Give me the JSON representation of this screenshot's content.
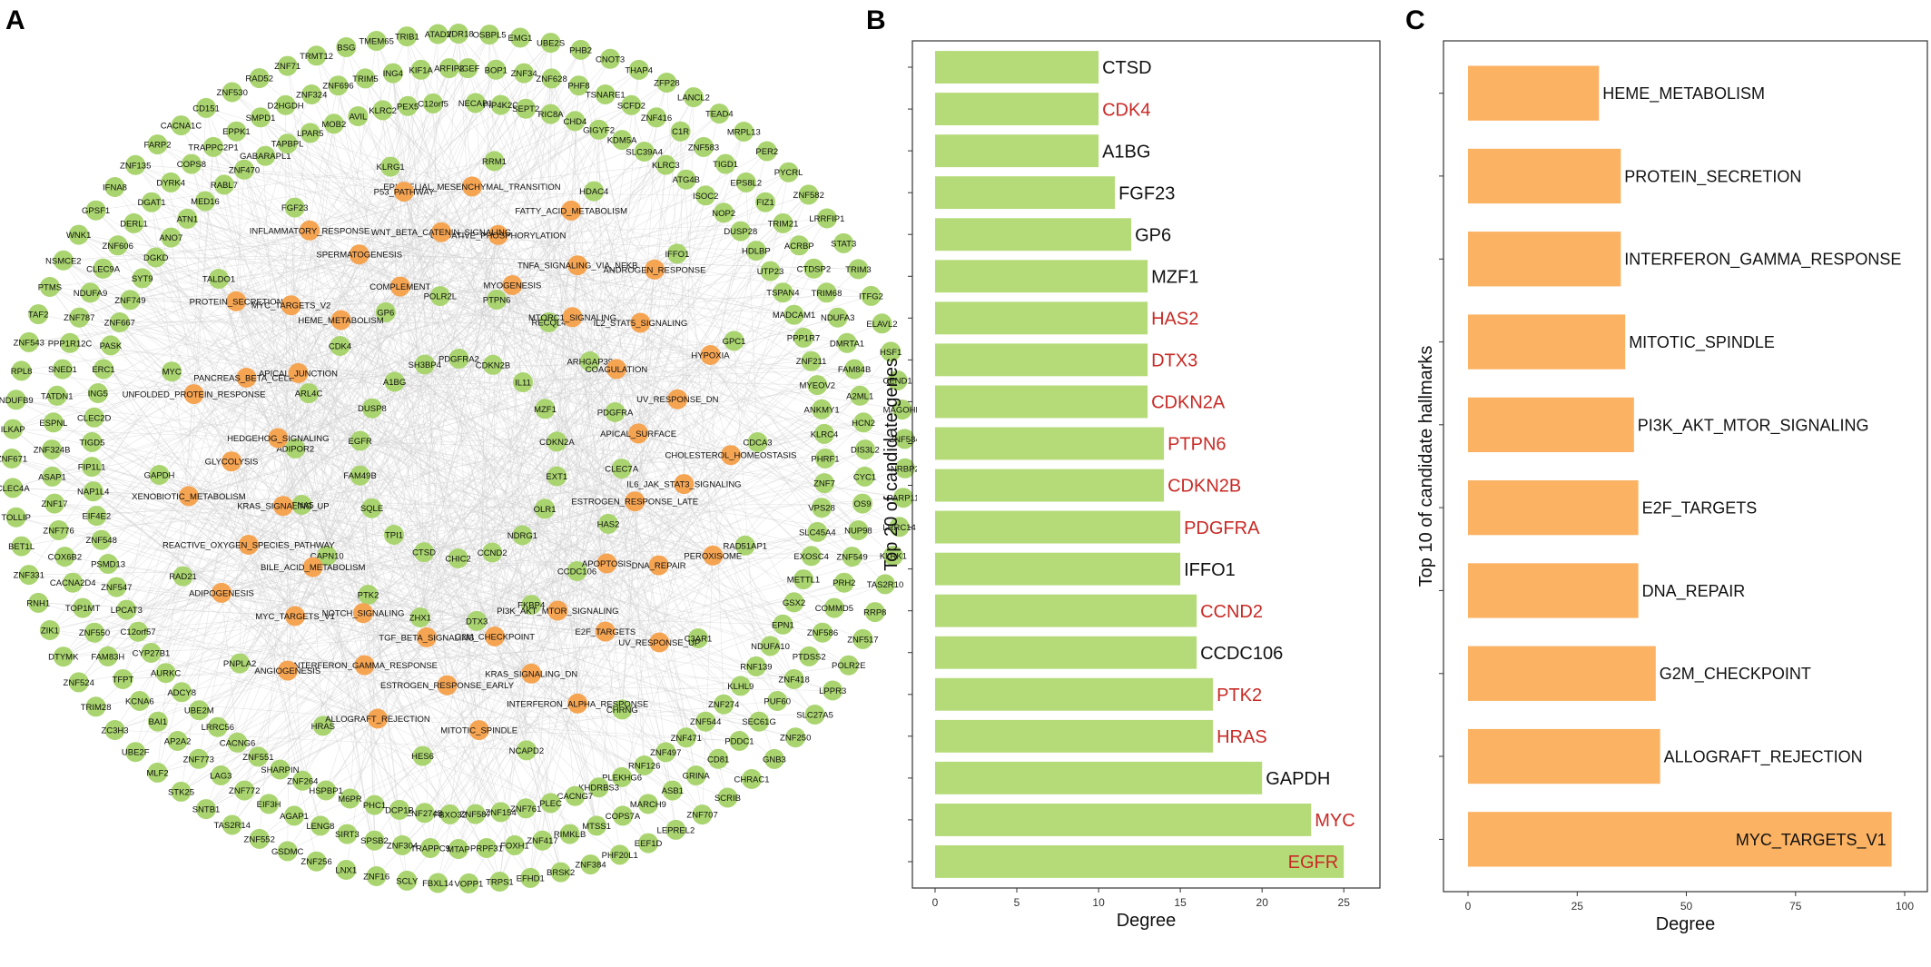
{
  "colors": {
    "gene_node": "#a9d46f",
    "hallmark_node": "#f5a452",
    "bar_b": "#b5db78",
    "bar_c": "#fbb262",
    "highlight_text": "#c82a25",
    "normal_text": "#111111",
    "edge": "#cfcfcf"
  },
  "panels": {
    "a": "A",
    "b": "B",
    "c": "C"
  },
  "network": {
    "hallmark_nodes": [
      "EPITHELIAL_MESENCHYMAL_TRANSITION",
      "OXIDATIVE_PHOSPHORYLATION",
      "MYOGENESIS",
      "FATTY_ACID_METABOLISM",
      "TNFA_SIGNALING_VIA_NFKB",
      "MTORC1_SIGNALING",
      "ANDROGEN_RESPONSE",
      "IL2_STAT5_SIGNALING",
      "COAGULATION",
      "HYPOXIA",
      "UV_RESPONSE_DN",
      "APICAL_SURFACE",
      "CHOLESTEROL_HOMEOSTASIS",
      "IL6_JAK_STAT3_SIGNALING",
      "ESTROGEN_RESPONSE_LATE",
      "PEROXISOME",
      "DNA_REPAIR",
      "APOPTOSIS",
      "UV_RESPONSE_UP",
      "E2F_TARGETS",
      "PI3K_AKT_MTOR_SIGNALING",
      "INTERFERON_ALPHA_RESPONSE",
      "KRAS_SIGNALING_DN",
      "G2M_CHECKPOINT",
      "MITOTIC_SPINDLE",
      "ESTROGEN_RESPONSE_EARLY",
      "TGF_BETA_SIGNALING",
      "ALLOGRAFT_REJECTION",
      "INTERFERON_GAMMA_RESPONSE",
      "NOTCH_SIGNALING",
      "ANGIOGENESIS",
      "MYC_TARGETS_V1",
      "BILE_ACID_METABOLISM",
      "ADIPOGENESIS",
      "REACTIVE_OXYGEN_SPECIES_PATHWAY",
      "KRAS_SIGNALING_UP",
      "XENOBIOTIC_METABOLISM",
      "GLYCOLYSIS",
      "HEDGEHOG_SIGNALING",
      "UNFOLDED_PROTEIN_RESPONSE",
      "PANCREAS_BETA_CELLS",
      "APICAL_JUNCTION",
      "PROTEIN_SECRETION",
      "MYC_TARGETS_V2",
      "HEME_METABOLISM",
      "INFLAMMATORY_RESPONSE",
      "SPERMATOGENESIS",
      "COMPLEMENT",
      "P53_PATHWAY",
      "WNT_BETA_CATENIN_SIGNALING"
    ],
    "inner_genes": [
      "RRM1",
      "PTPN6",
      "CDKN2B",
      "HDAC4",
      "RECQL4",
      "IL11",
      "IFFO1",
      "ARHGAP39",
      "MZF1",
      "GPC1",
      "PDGFRA",
      "CDKN2A",
      "CDCA3",
      "CLEC7A",
      "EXT1",
      "RAD51AP1",
      "HAS2",
      "OLR1",
      "C3AR1",
      "CCDC106",
      "NDRG1",
      "CHRNG",
      "FKBP4",
      "CCND2",
      "NCAPD2",
      "DTX3",
      "CHIC2",
      "HES6",
      "ZHX1",
      "CTSD",
      "HRAS",
      "PTK2",
      "TPI1",
      "PNPLA2",
      "CAPN10",
      "SQLE",
      "RAD21",
      "IFNA5",
      "FAM49B",
      "GAPDH",
      "ADIPOR2",
      "EGFR",
      "MYC",
      "ARL4C",
      "DUSP8",
      "TALDO1",
      "CDK4",
      "A1BG",
      "FGF23",
      "GP6",
      "SH3BP4",
      "KLRG1",
      "POLR2L",
      "PDGFRA2"
    ],
    "outer_genes": [
      "WDR18",
      "NGEF",
      "NECAP1",
      "OSBPL5",
      "BOP1",
      "PIP4K2C",
      "EMG1",
      "ZNF34",
      "SEPT2",
      "UBE2S",
      "ZNF628",
      "RIC8A",
      "PHB2",
      "PHF8",
      "CHD4",
      "CNOT3",
      "TSNARE1",
      "GIGYF2",
      "THAP4",
      "SCFD2",
      "KDM5A",
      "ZFP28",
      "ZNF416",
      "SLC39A4",
      "LANCL2",
      "C1R",
      "KLRC3",
      "TEAD4",
      "ZNF583",
      "ATG4B",
      "MRPL13",
      "TIGD1",
      "ISOC2",
      "PER2",
      "EPS8L2",
      "NOP2",
      "PYCRL",
      "FIZ1",
      "DUSP28",
      "ZNF582",
      "TRIM21",
      "HDLBP",
      "LRRFIP1",
      "ACRBP",
      "UTP23",
      "STAT3",
      "CTDSP2",
      "TSPAN4",
      "TRIM3",
      "TRIM68",
      "MADCAM1",
      "ITFG2",
      "NDUFA3",
      "PPP1R7",
      "ELAVL2",
      "DMRTA1",
      "ZNF211",
      "HSF1",
      "FAM84B",
      "MYEOV2",
      "CEND1",
      "A2ML1",
      "ANKMY1",
      "MAGOHB",
      "HCN2",
      "KLRC4",
      "ZNF584",
      "DIS3L2",
      "PHRF1",
      "NRBP2",
      "CYC1",
      "ZNF7",
      "PARP11",
      "OS9",
      "VPS28",
      "LRRC14",
      "NUP98",
      "SLC45A4",
      "KLRK1",
      "ZNF549",
      "EXOSC4",
      "TAS2R10",
      "PRH2",
      "METTL1",
      "RRP8",
      "COMMD5",
      "GSX2",
      "ZNF517",
      "ZNF586",
      "EPN1",
      "POLR2E",
      "PTDSS2",
      "NDUFA10",
      "LPPR3",
      "ZNF418",
      "RNF139",
      "SLC27A5",
      "PUF60",
      "KLHL9",
      "ZNF250",
      "SEC61G",
      "ZNF274",
      "GNB3",
      "PDDC1",
      "ZNF544",
      "CHRAC1",
      "CD81",
      "ZNF471",
      "SCRIB",
      "GRINA",
      "ZNF497",
      "ZNF707",
      "ASB1",
      "RNF126",
      "LEPREL2",
      "MARCH9",
      "PLEKHG6",
      "EEF1D",
      "COPS7A",
      "KHDRBS3",
      "PHF20L1",
      "MTSS1",
      "CACNG7",
      "ZNF384",
      "RIMKLB",
      "PLEC",
      "BRSK2",
      "ZNF417",
      "ZNF761",
      "EFHD1",
      "FOXH1",
      "ZNF154",
      "TRPS1",
      "PRPF31",
      "ZNF587",
      "VOPP1",
      "MTAP",
      "FBXO32",
      "FBXL14",
      "TRAPPC9",
      "ZNF274B",
      "SCLY",
      "ZNF304",
      "DCP1B",
      "ZNF16",
      "SPSB2",
      "PHC1",
      "LNX1",
      "SIRT3",
      "M6PR",
      "ZNF256",
      "LENG8",
      "HSPBP1",
      "GSDMC",
      "AGAP1",
      "ZNF264",
      "ZNF552",
      "EIF3H",
      "SHARPIN",
      "TAS2R14",
      "ZNF772",
      "ZNF551",
      "SNTB1",
      "LAG3",
      "CACNG6",
      "STK25",
      "ZNF773",
      "LRRC56",
      "MLF2",
      "AP2A2",
      "UBE2M",
      "UBE2F",
      "BAI1",
      "ADCY8",
      "ZC3H3",
      "KCNA6",
      "AURKC",
      "TRIM28",
      "TFPT",
      "CYP27B1",
      "ZNF524",
      "FAM83H",
      "C12orf57",
      "DTYMK",
      "ZNF550",
      "LPCAT3",
      "ZIK1",
      "TOP1MT",
      "ZNF547",
      "RNH1",
      "CACNA2D4",
      "PSMD13",
      "ZNF331",
      "COX6B2",
      "ZNF548",
      "BET1L",
      "ZNF776",
      "EIF4E2",
      "TOLLIP",
      "ZNF17",
      "NAP1L4",
      "CLEC4A",
      "ASAP1",
      "FIP1L1",
      "ZNF671",
      "ZNF324B",
      "TIGD5",
      "ILKAP",
      "ESPNL",
      "CLEC2D",
      "NDUFB9",
      "TATDN1",
      "ING5",
      "RPL8",
      "SNED1",
      "ERC1",
      "ZNF543",
      "PPP1R12C",
      "PASK",
      "TAF2",
      "ZNF787",
      "ZNF667",
      "PTMS",
      "NDUFA9",
      "ZNF749",
      "NSMCE2",
      "CLEC9A",
      "SYT9",
      "WNK1",
      "ZNF606",
      "DGKD",
      "GPSF1",
      "DERL1",
      "ANO7",
      "IFNA8",
      "DGAT1",
      "ATN1",
      "ZNF135",
      "DYRK4",
      "MED16",
      "FARP2",
      "COPS8",
      "RABL7",
      "CACNA1C",
      "TRAPPC2P1",
      "ZNF470",
      "CD151",
      "EPPK1",
      "GABARAPL1",
      "ZNF530",
      "SMPD1",
      "TAPBPL",
      "RAD52",
      "D2HGDH",
      "LPAR5",
      "ZNF71",
      "ZNF324",
      "MOB2",
      "TRMT12",
      "ZNF696",
      "AVIL",
      "BSG",
      "TRIM5",
      "KLRC2",
      "TMEM65",
      "ING4",
      "PEX5",
      "TRIB1",
      "KIF1A",
      "C12orf5",
      "ATAD2",
      "ARFIP2"
    ]
  },
  "chart_data": [
    {
      "type": "bar",
      "orientation": "horizontal",
      "categories": [
        "CTSD",
        "CDK4",
        "A1BG",
        "FGF23",
        "GP6",
        "MZF1",
        "HAS2",
        "DTX3",
        "CDKN2A",
        "PTPN6",
        "CDKN2B",
        "PDGFRA",
        "IFFO1",
        "CCND2",
        "CCDC106",
        "PTK2",
        "HRAS",
        "GAPDH",
        "MYC",
        "EGFR"
      ],
      "values": [
        10,
        10,
        10,
        11,
        12,
        13,
        13,
        13,
        13,
        14,
        14,
        15,
        15,
        16,
        16,
        17,
        17,
        20,
        23,
        25
      ],
      "highlighted": [
        false,
        true,
        false,
        false,
        false,
        false,
        true,
        true,
        true,
        true,
        true,
        true,
        false,
        true,
        false,
        true,
        true,
        false,
        true,
        true
      ],
      "title": "",
      "xlabel": "Degree",
      "ylabel": "Top 20 of candidate genes",
      "xlim": [
        0,
        26.1
      ],
      "xticks": [
        "0",
        "5",
        "10",
        "15",
        "20",
        "25"
      ]
    },
    {
      "type": "bar",
      "orientation": "horizontal",
      "categories": [
        "HEME_METABOLISM",
        "PROTEIN_SECRETION",
        "INTERFERON_GAMMA_RESPONSE",
        "MITOTIC_SPINDLE",
        "PI3K_AKT_MTOR_SIGNALING",
        "E2F_TARGETS",
        "DNA_REPAIR",
        "G2M_CHECKPOINT",
        "ALLOGRAFT_REJECTION",
        "MYC_TARGETS_V1"
      ],
      "values": [
        30,
        35,
        35,
        36,
        38,
        39,
        39,
        43,
        44,
        97
      ],
      "title": "",
      "xlabel": "Degree",
      "ylabel": "Top 10 of candidate hallmarks",
      "xlim": [
        0,
        100
      ],
      "xticks": [
        "0",
        "25",
        "50",
        "75",
        "100"
      ]
    }
  ]
}
